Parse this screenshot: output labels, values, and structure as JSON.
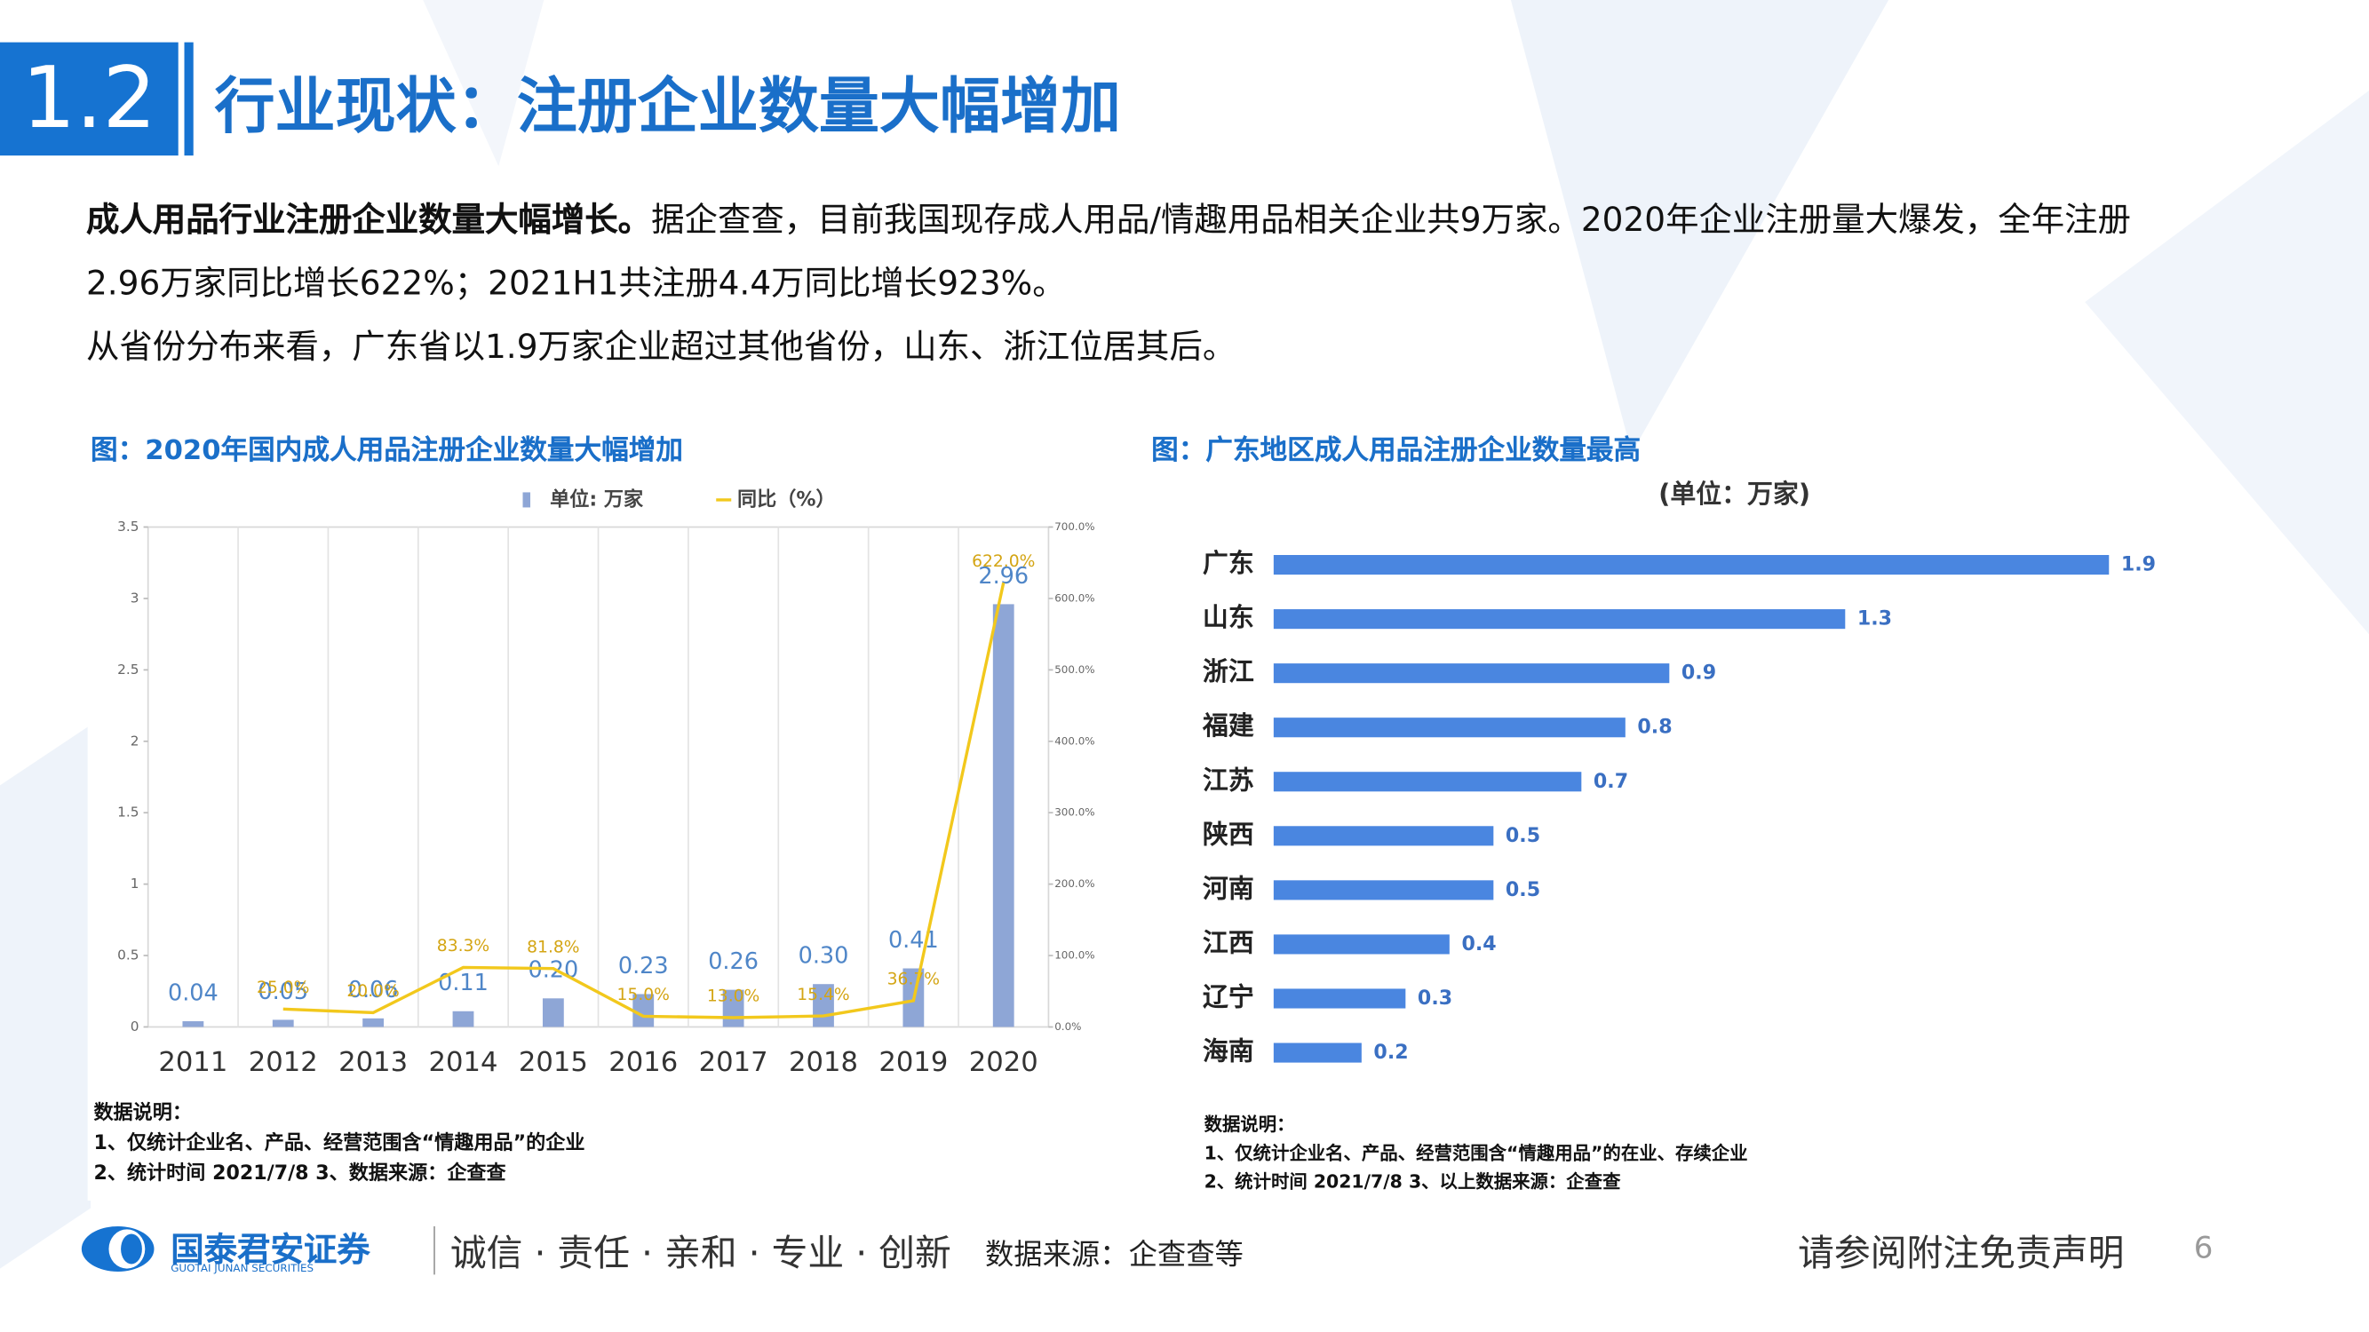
{
  "header": {
    "number": "1.2",
    "title": "行业现状：注册企业数量大幅增加"
  },
  "body": {
    "paragraphs": [
      {
        "bold": "成人用品行业注册企业数量大幅增长。",
        "text": "据企查查，目前我国现存成人用品/情趣用品相关企业共9万家。2020年企业注册量大爆发，全年注册2.96万家同比增长622%；2021H1共注册4.4万同比增长923%。"
      },
      {
        "text": "从省份分布来看，广东省以1.9万家企业超过其他省份，山东、浙江位居其后。"
      }
    ]
  },
  "chart_data": [
    {
      "type": "bar",
      "caption": "图：2020年国内成人用品注册企业数量大幅增加",
      "categories": [
        "2011",
        "2012",
        "2013",
        "2014",
        "2015",
        "2016",
        "2017",
        "2018",
        "2019",
        "2020"
      ],
      "series": [
        {
          "name": "单位: 万家",
          "color": "#8ea6d6",
          "values": [
            0.04,
            0.05,
            0.06,
            0.11,
            0.2,
            0.23,
            0.26,
            0.3,
            0.41,
            2.96
          ],
          "value_labels": [
            "0.04",
            "0.05",
            "0.06",
            "0.11",
            "0.20",
            "0.23",
            "0.26",
            "0.30",
            "0.41",
            "2.96"
          ]
        },
        {
          "name": "同比（%）",
          "type": "line",
          "axis": "y2",
          "color": "#f2c81c",
          "values": [
            null,
            25.0,
            20.0,
            83.3,
            81.8,
            15.0,
            13.0,
            15.4,
            36.7,
            622.0
          ],
          "value_labels": [
            null,
            "25.0%",
            "20.0%",
            "83.3%",
            "81.8%",
            "15.0%",
            "13.0%",
            "15.4%",
            "36.7%",
            "622.0%"
          ]
        }
      ],
      "ylim": [
        0,
        3.5
      ],
      "yticks": [
        0,
        0.5,
        1,
        1.5,
        2,
        2.5,
        3,
        3.5
      ],
      "y2lim": [
        0,
        700
      ],
      "y2ticks": [
        {
          "value": 0,
          "label": "0.0%"
        },
        {
          "value": 100,
          "label": "100.0%"
        },
        {
          "value": 200,
          "label": "200.0%"
        },
        {
          "value": 300,
          "label": "300.0%"
        },
        {
          "value": 400,
          "label": "400.0%"
        },
        {
          "value": 500,
          "label": "500.0%"
        },
        {
          "value": 600,
          "label": "600.0%"
        },
        {
          "value": 700,
          "label": "700.0%"
        }
      ],
      "grid": true,
      "notes": [
        "数据说明：",
        "1、仅统计企业名、产品、经营范围含“情趣用品”的企业",
        "2、统计时间  2021/7/8    3、数据来源：企查查"
      ]
    },
    {
      "type": "bar",
      "orientation": "horizontal",
      "caption": "图：广东地区成人用品注册企业数量最高",
      "title": "(单位：万家)",
      "categories": [
        "广东",
        "山东",
        "浙江",
        "福建",
        "江苏",
        "陕西",
        "河南",
        "江西",
        "辽宁",
        "海南"
      ],
      "values": [
        1.9,
        1.3,
        0.9,
        0.8,
        0.7,
        0.5,
        0.5,
        0.4,
        0.3,
        0.2
      ],
      "color": "#4a86e0",
      "xlim": [
        0,
        2
      ],
      "notes": [
        "数据说明：",
        "1、仅统计企业名、产品、经营范围含“情趣用品”的在业、存续企业",
        "2、统计时间  2021/7/8    3、以上数据来源：企查查"
      ]
    }
  ],
  "footer": {
    "brand": "国泰君安证券",
    "brand_en": "GUOTAI JUNAN SECURITIES",
    "slogan": "诚信 · 责任 · 亲和 · 专业 · 创新",
    "source": "数据来源：企查查等",
    "disclaimer": "请参阅附注免责声明",
    "page": "6"
  }
}
